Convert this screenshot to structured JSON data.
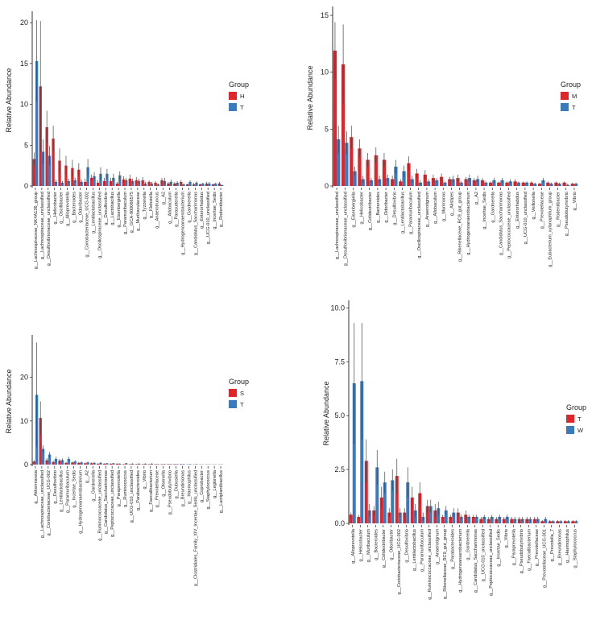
{
  "colors": {
    "group_a": "#e0262a",
    "group_b": "#3a7bbf",
    "error": "#444444"
  },
  "chart_data": [
    {
      "type": "bar",
      "panel": "top-left",
      "ylabel": "Relative Abundance",
      "ylim": [
        0,
        21
      ],
      "yticks": [
        0,
        5,
        10,
        15,
        20
      ],
      "legend": {
        "title": "Group",
        "entries": [
          "H",
          "T"
        ],
        "position": "right"
      },
      "categories": [
        "g__Lachnospiraceae_NK4A136_group",
        "g__Lachnospiraceae_unclassified",
        "g__Desulfovibrionaceae_unclassified",
        "g__Helicobacter",
        "g__Oscillibacter",
        "g__Alloprevotella",
        "g__Bacteroides",
        "g__Odoribacter",
        "g__Coriobacteriaceae_UCG-002",
        "g__Lentilactobacillus",
        "g__Oscillospiraceae_unclassified",
        "g__Desulfovibrio",
        "g__Lactobacillus",
        "g__Eisenbergiella",
        "g__Paramuribaculum",
        "g__GCA-900066575",
        "g__Muribaculaceae",
        "g__Tyzzerella",
        "g__Klebsiella",
        "g__Anaerotruncus",
        "g__A2",
        "g__Allobaculum",
        "g__Parasutterella",
        "g__Hydrogenoanaerobacterium",
        "g__Gardnerella",
        "g__Candidatus_Saccharimonas",
        "g__Enterorhabdus",
        "g__UCG-010_unclassified",
        "g__Incertae_Sedis",
        "g__Rodentibacter"
      ],
      "series": [
        {
          "name": "H",
          "values": [
            3.3,
            12.2,
            7.2,
            5.8,
            3.1,
            2.5,
            2.2,
            2.0,
            0.5,
            1.0,
            0.4,
            0.6,
            0.6,
            0.3,
            0.8,
            0.9,
            0.7,
            0.7,
            0.5,
            0.4,
            0.7,
            0.3,
            0.3,
            0.5,
            0.2,
            0.2,
            0.2,
            0.3,
            0.2,
            0.3
          ],
          "errors": [
            0.8,
            8.0,
            2.0,
            1.6,
            1.5,
            1.2,
            1.0,
            0.8,
            0.4,
            0.4,
            0.3,
            0.4,
            0.4,
            0.2,
            0.4,
            0.5,
            0.4,
            0.4,
            0.2,
            0.2,
            0.3,
            0.2,
            0.2,
            0.2,
            0.1,
            0.2,
            0.1,
            0.2,
            0.1,
            0.2
          ]
        },
        {
          "name": "T",
          "values": [
            15.3,
            4.2,
            3.7,
            0.5,
            0.4,
            0.6,
            0.7,
            0.5,
            2.3,
            1.2,
            1.5,
            1.5,
            1.0,
            1.3,
            0.7,
            0.6,
            0.6,
            0.3,
            0.3,
            0.2,
            0.6,
            0.5,
            0.4,
            0.2,
            0.5,
            0.4,
            0.3,
            0.3,
            0.3,
            0.1
          ],
          "errors": [
            5.0,
            1.5,
            1.2,
            0.3,
            0.2,
            0.3,
            0.3,
            0.3,
            1.0,
            0.5,
            0.8,
            0.6,
            0.5,
            0.5,
            0.3,
            0.3,
            0.3,
            0.2,
            0.2,
            0.1,
            0.4,
            0.3,
            0.2,
            0.1,
            0.2,
            0.2,
            0.1,
            0.2,
            0.1,
            0.1
          ]
        }
      ]
    },
    {
      "type": "bar",
      "panel": "top-right",
      "ylabel": "Relative Abundance",
      "ylim": [
        0,
        15.5
      ],
      "yticks": [
        0,
        5,
        10,
        15
      ],
      "legend": {
        "title": "Group",
        "entries": [
          "M",
          "T"
        ],
        "position": "right"
      },
      "categories": [
        "g__Lachnospiraceae_unclassified",
        "g__Desulfovibrionaceae_unclassified",
        "g__Eisenbergiella",
        "g__Helicobacter",
        "g__Colidextribacter",
        "g__Bacteroides",
        "g__Odoribacter",
        "g__Desulfovibrio",
        "g__Lentilactobacillus",
        "g__Paramuribaculum",
        "g__Oscillospiraceae_unclassified",
        "g__Anaerotignum",
        "g__Allobaculum",
        "g__Murimonas",
        "g__Alistipes",
        "g__Rikenellaceae_RC9_gut_group",
        "g__Hydrogenoanaerobacterium",
        "g__A2",
        "g__Incertae_Sedis",
        "g__Gardnerella",
        "g__Candidatus_Saccharimonas",
        "g__Peptococcaceae_unclassified",
        "g__Enterorhabdus",
        "g__UCG-010_unclassified",
        "g__Veillonella",
        "g__Prevotellaceae",
        "g__Eubacterium_xylanophilum_group",
        "g__Rodentibacter",
        "g__Pseudobutyrivibrio",
        "g__Vibrio"
      ],
      "series": [
        {
          "name": "M",
          "values": [
            11.9,
            10.7,
            4.3,
            3.3,
            2.3,
            2.7,
            2.3,
            0.6,
            0.4,
            2.0,
            1.1,
            1.0,
            0.7,
            0.8,
            0.6,
            0.7,
            0.6,
            0.5,
            0.5,
            0.3,
            0.3,
            0.3,
            0.4,
            0.3,
            0.3,
            0.2,
            0.3,
            0.3,
            0.3,
            0.2
          ],
          "errors": [
            2.5,
            3.5,
            1.0,
            0.8,
            0.6,
            0.7,
            0.6,
            0.3,
            0.2,
            0.6,
            0.4,
            0.4,
            0.3,
            0.3,
            0.2,
            0.3,
            0.2,
            0.2,
            0.2,
            0.1,
            0.1,
            0.1,
            0.2,
            0.1,
            0.1,
            0.1,
            0.1,
            0.1,
            0.1,
            0.1
          ]
        },
        {
          "name": "T",
          "values": [
            4.1,
            3.8,
            1.3,
            0.6,
            0.5,
            0.6,
            0.7,
            1.7,
            1.3,
            0.6,
            0.3,
            0.4,
            0.5,
            0.3,
            0.6,
            0.3,
            0.7,
            0.6,
            0.3,
            0.5,
            0.5,
            0.4,
            0.3,
            0.3,
            0.2,
            0.5,
            0.2,
            0.2,
            0.1,
            0.2
          ],
          "errors": [
            1.2,
            1.0,
            0.4,
            0.3,
            0.2,
            0.3,
            0.3,
            0.6,
            0.5,
            0.3,
            0.2,
            0.2,
            0.2,
            0.1,
            0.3,
            0.1,
            0.3,
            0.3,
            0.1,
            0.2,
            0.2,
            0.2,
            0.1,
            0.1,
            0.1,
            0.2,
            0.1,
            0.1,
            0.1,
            0.1
          ]
        }
      ]
    },
    {
      "type": "bar",
      "panel": "bottom-left",
      "ylabel": "Relative Abundance",
      "ylim": [
        0,
        29
      ],
      "yticks": [
        0,
        10,
        20
      ],
      "legend": {
        "title": "Group",
        "entries": [
          "S",
          "T"
        ],
        "position": "right"
      },
      "categories": [
        "g__Akkermansia",
        "g__Lachnospiraceae_unclassified",
        "g__Coriobacteriaceae_UCG-002",
        "g__Desulfovibrio",
        "g__Lentilactobacillus",
        "g__Paramuribaculum",
        "g__Incertae_Sedis",
        "g__Hydrogenoanaerobacterium",
        "g__A2",
        "g__Gardnerella",
        "g__Ruminococcaceae_unclassified",
        "g__Candidatus_Saccharimonas",
        "g__Peptococcaceae_unclassified",
        "g__Paraprevotella",
        "g__Ruminococcus",
        "g__UCG-010_unclassified",
        "g__Parabacteroides",
        "g__Vibrio",
        "g__Faecalibacterium",
        "g__Prevotellaceae",
        "g__Olsenella",
        "g__Pseudobutyrivibrio",
        "g__Dubosiella",
        "g__Breundimonas",
        "g__Haemophilus",
        "g__Clostridiales_Family_XIV_Incertae_Sedis_unclassified",
        "g__Coprobacter",
        "g__Staphylococcus",
        "g__Legionella",
        "g__Lactiplantibacillus"
      ],
      "series": [
        {
          "name": "S",
          "values": [
            0.7,
            10.7,
            1.0,
            0.6,
            0.9,
            0.4,
            0.5,
            0.4,
            0.3,
            0.3,
            0.2,
            0.2,
            0.2,
            0.2,
            0.1,
            0.1,
            0.1,
            0.1,
            0.1,
            0.1,
            0.1,
            0.1,
            0.1,
            0.1,
            0.05,
            0.05,
            0.05,
            0.05,
            0.05,
            0.05
          ],
          "errors": [
            0.3,
            3.8,
            0.5,
            0.3,
            0.4,
            0.2,
            0.2,
            0.2,
            0.2,
            0.2,
            0.1,
            0.1,
            0.1,
            0.1,
            0.05,
            0.05,
            0.05,
            0.05,
            0.05,
            0.05,
            0.05,
            0.05,
            0.05,
            0.05,
            0.03,
            0.03,
            0.03,
            0.03,
            0.03,
            0.03
          ]
        },
        {
          "name": "T",
          "values": [
            16.0,
            3.6,
            2.3,
            1.3,
            1.0,
            1.3,
            0.7,
            0.5,
            0.5,
            0.4,
            0.4,
            0.3,
            0.3,
            0.2,
            0.3,
            0.2,
            0.2,
            0.2,
            0.2,
            0.1,
            0.1,
            0.1,
            0.1,
            0.1,
            0.1,
            0.1,
            0.05,
            0.05,
            0.05,
            0.05
          ],
          "errors": [
            12.0,
            0.8,
            0.6,
            0.5,
            0.4,
            0.5,
            0.3,
            0.2,
            0.2,
            0.2,
            0.2,
            0.1,
            0.1,
            0.1,
            0.1,
            0.1,
            0.1,
            0.1,
            0.1,
            0.05,
            0.05,
            0.05,
            0.05,
            0.05,
            0.05,
            0.05,
            0.03,
            0.03,
            0.03,
            0.03
          ]
        }
      ]
    },
    {
      "type": "bar",
      "panel": "bottom-right",
      "ylabel": "Relative Abundance",
      "ylim": [
        0,
        10.2
      ],
      "yticks": [
        0,
        2.5,
        5.0,
        7.5,
        10.0
      ],
      "ytick_labels": [
        "0.0",
        "2.5",
        "5.0",
        "7.5",
        "10.0"
      ],
      "legend": {
        "title": "Group",
        "entries": [
          "T",
          "W"
        ],
        "position": "right"
      },
      "categories": [
        "g__Alloprevotella",
        "g__Helicobacter",
        "g__Muribaculum",
        "g__Bacteroides",
        "g__Colidextribacter",
        "g__Odoribacter",
        "g__Coriobacteriaceae_UCG-002",
        "g__Desulfovibrio",
        "g__Lentilactobacillus",
        "g__Paramuribaculum",
        "g__Ruminococcaceae_unclassified",
        "g__Anaerotignum",
        "g__Rikenellaceae_RC9_gut_group",
        "g__Parabacteroides",
        "g__Hydrogenoanaerobacterium",
        "g__Gardnerella",
        "g__Candidatus_Saccharimonas",
        "g__UCG-010_unclassified",
        "g__Peptococcaceae_unclassified",
        "g__Incertae_Sedis",
        "g__Vibrio",
        "g__Paraprevotella",
        "g__Pseudobutyrivibrio",
        "g__Faecalibacterium",
        "g__Prevotellaceae",
        "g__Prevotellaceae_UCG-001",
        "g__Prevotella_7",
        "g__Breundimonas",
        "g__Haemophilus",
        "g__Staphylococcus"
      ],
      "series": [
        {
          "name": "T",
          "values": [
            0.4,
            0.3,
            2.9,
            0.6,
            1.2,
            0.5,
            2.2,
            0.5,
            1.2,
            1.4,
            0.8,
            0.6,
            0.3,
            0.3,
            0.5,
            0.4,
            0.3,
            0.2,
            0.2,
            0.2,
            0.2,
            0.2,
            0.2,
            0.2,
            0.2,
            0.1,
            0.1,
            0.1,
            0.1,
            0.1
          ],
          "errors": [
            0.1,
            0.1,
            1.0,
            0.2,
            0.5,
            0.2,
            0.8,
            0.2,
            0.5,
            0.5,
            0.3,
            0.3,
            0.1,
            0.1,
            0.2,
            0.2,
            0.1,
            0.1,
            0.1,
            0.1,
            0.1,
            0.1,
            0.1,
            0.1,
            0.1,
            0.05,
            0.05,
            0.05,
            0.05,
            0.05
          ]
        },
        {
          "name": "W",
          "values": [
            6.5,
            6.6,
            0.6,
            2.6,
            1.9,
            2.0,
            0.5,
            1.9,
            0.6,
            0.3,
            0.8,
            0.7,
            0.6,
            0.5,
            0.3,
            0.3,
            0.3,
            0.3,
            0.3,
            0.3,
            0.3,
            0.2,
            0.2,
            0.2,
            0.2,
            0.2,
            0.1,
            0.1,
            0.1,
            0.1
          ],
          "errors": [
            2.8,
            2.7,
            0.3,
            0.8,
            0.5,
            0.5,
            0.2,
            0.7,
            0.3,
            0.2,
            0.3,
            0.3,
            0.2,
            0.2,
            0.1,
            0.1,
            0.1,
            0.1,
            0.1,
            0.1,
            0.1,
            0.1,
            0.1,
            0.1,
            0.1,
            0.1,
            0.05,
            0.05,
            0.05,
            0.05
          ]
        }
      ]
    }
  ]
}
